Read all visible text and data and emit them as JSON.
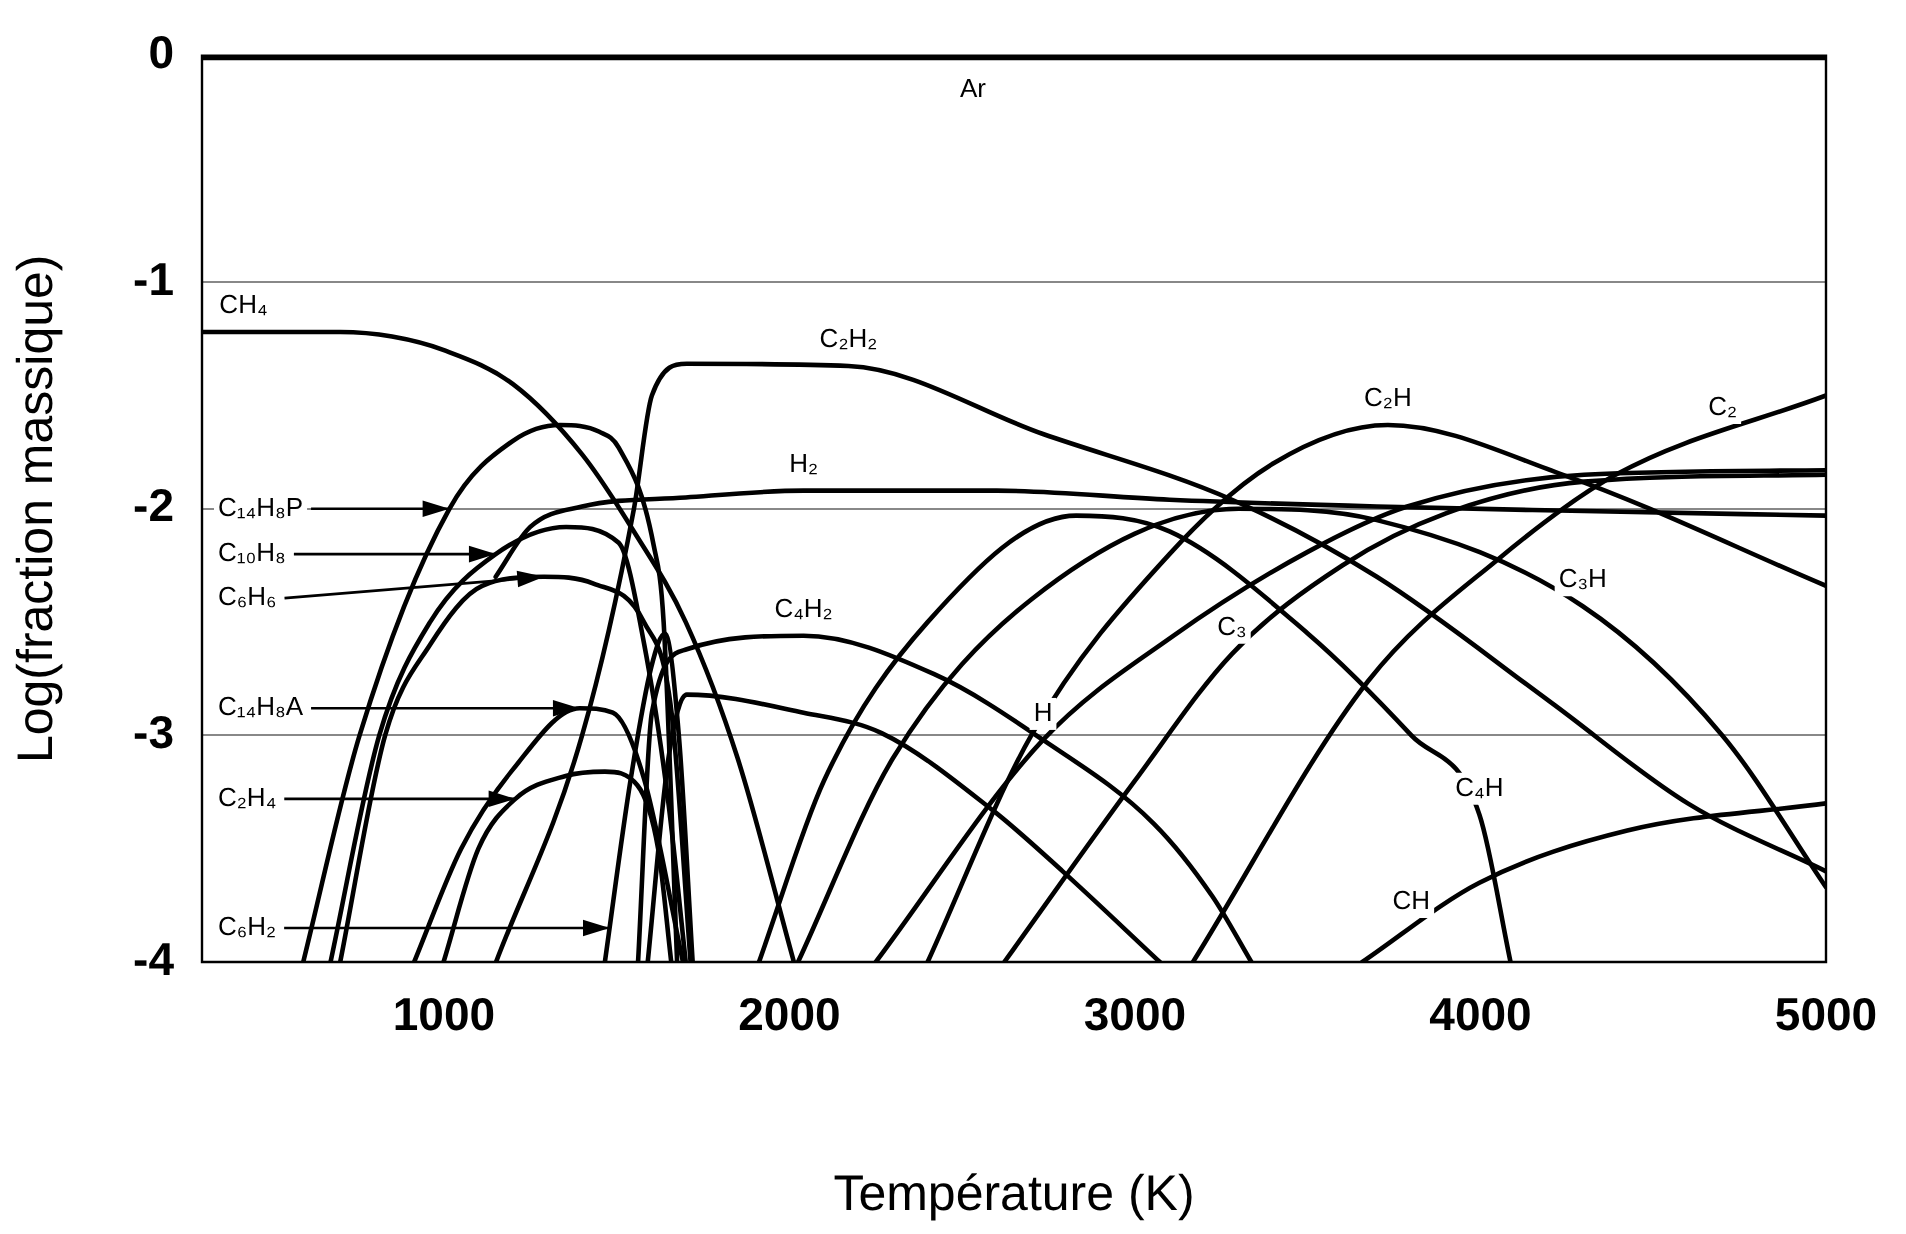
{
  "chart_data": {
    "type": "line",
    "xlabel": "Température (K)",
    "ylabel": "Log(fraction massique)",
    "xlim": [
      300,
      5000
    ],
    "xticks": [
      1000,
      2000,
      3000,
      4000,
      5000
    ],
    "ylim": [
      -4,
      0
    ],
    "yticks": [
      -4,
      -3,
      -2,
      -1,
      0
    ],
    "grid": "y",
    "legend": false,
    "marker": "none",
    "line_style": "solid",
    "series": [
      {
        "color": "#000000",
        "x": [
          300,
          5000
        ],
        "values": [
          -0.01,
          -0.01
        ]
      },
      {
        "color": "#000000",
        "x": [
          300,
          700,
          850,
          1000,
          1200,
          1400,
          1550,
          1700,
          1850,
          2013
        ],
        "values": [
          -1.22,
          -1.22,
          -1.24,
          -1.3,
          -1.45,
          -1.76,
          -2.1,
          -2.5,
          -3.1,
          -4
        ]
      },
      {
        "color": "#000000",
        "x": [
          593,
          756,
          1016,
          1200,
          1337,
          1450,
          1506,
          1607,
          1636,
          1675
        ],
        "values": [
          -4,
          -3,
          -2,
          -1.7,
          -1.63,
          -1.66,
          -1.73,
          -2.16,
          -2.5,
          -4
        ]
      },
      {
        "color": "#000000",
        "x": [
          672,
          813,
          960,
          1150,
          1354,
          1506,
          1580,
          1650,
          1700
        ],
        "values": [
          -4,
          -3,
          -2.5,
          -2.2,
          -2.08,
          -2.15,
          -2.6,
          -3.3,
          -4
        ]
      },
      {
        "color": "#000000",
        "x": [
          700,
          830,
          960,
          1111,
          1290,
          1433,
          1579,
          1659,
          1714
        ],
        "values": [
          -4,
          -3,
          -2.6,
          -2.34,
          -2.3,
          -2.33,
          -2.5,
          -2.9,
          -4
        ]
      },
      {
        "color": "#000000",
        "x": [
          914,
          1050,
          1200,
          1393,
          1489,
          1579,
          1692
        ],
        "values": [
          -4,
          -3.5,
          -3.15,
          -2.88,
          -2.9,
          -3.19,
          -4
        ]
      },
      {
        "color": "#000000",
        "x": [
          999,
          1100,
          1207,
          1350,
          1466,
          1560,
          1620,
          1658
        ],
        "values": [
          -4,
          -3.5,
          -3.28,
          -3.18,
          -3.16,
          -3.22,
          -3.5,
          -4
        ]
      },
      {
        "color": "#000000",
        "x": [
          1466,
          1540,
          1600,
          1640,
          1680,
          1720
        ],
        "values": [
          -4,
          -3.2,
          -2.7,
          -2.55,
          -3,
          -4
        ]
      },
      {
        "color": "#000000",
        "x": [
          1151,
          1400,
          1550,
          1602,
          1703,
          2171,
          2734,
          3281,
          3700,
          4200,
          4600,
          5000
        ],
        "values": [
          -4,
          -3,
          -2,
          -1.5,
          -1.36,
          -1.37,
          -1.67,
          -1.96,
          -2.3,
          -2.85,
          -3.3,
          -3.6
        ]
      },
      {
        "color": "#000000",
        "x": [
          1150,
          1250,
          1400,
          1700,
          2041,
          2600,
          3100,
          3700,
          4300,
          5000
        ],
        "values": [
          -2.3,
          -2.08,
          -1.99,
          -1.95,
          -1.92,
          -1.92,
          -1.96,
          -1.99,
          -2.01,
          -2.03
        ]
      },
      {
        "color": "#000000",
        "x": [
          1562,
          1602,
          1703,
          2041,
          2419,
          2734,
          3055,
          3224,
          3337
        ],
        "values": [
          -4,
          -2.9,
          -2.62,
          -2.56,
          -2.73,
          -3.02,
          -3.39,
          -3.71,
          -4
        ]
      },
      {
        "color": "#000000",
        "x": [
          1590,
          1650,
          1703,
          2041,
          2267,
          2588,
          2791,
          3072
        ],
        "values": [
          -4,
          -3.1,
          -2.82,
          -2.9,
          -2.99,
          -3.33,
          -3.6,
          -4
        ]
      },
      {
        "color": "#000000",
        "x": [
          1912,
          2100,
          2400,
          2830,
          3100,
          3500,
          3800,
          3997,
          4087
        ],
        "values": [
          -4,
          -3.2,
          -2.5,
          -2.03,
          -2.1,
          -2.55,
          -3,
          -3.35,
          -4
        ]
      },
      {
        "color": "#000000",
        "x": [
          2025,
          2300,
          2700,
          3300,
          3700,
          4296,
          4700,
          5000
        ],
        "values": [
          -4,
          -3.1,
          -2.4,
          -2,
          -2.05,
          -2.43,
          -3,
          -3.67
        ]
      },
      {
        "color": "#000000",
        "x": [
          2250,
          2734,
          3112,
          3500,
          3788,
          4300,
          5000
        ],
        "values": [
          -4,
          -3.02,
          -2.56,
          -2.19,
          -1.99,
          -1.85,
          -1.83
        ]
      },
      {
        "color": "#000000",
        "x": [
          2622,
          3000,
          3281,
          3600,
          3900,
          4300,
          5000
        ],
        "values": [
          -4,
          -3.2,
          -2.64,
          -2.25,
          -2.02,
          -1.88,
          -1.85
        ]
      },
      {
        "color": "#000000",
        "x": [
          2400,
          2700,
          3100,
          3400,
          3732,
          4239,
          5000
        ],
        "values": [
          -4,
          -3,
          -2.2,
          -1.8,
          -1.63,
          -1.85,
          -2.34
        ]
      },
      {
        "color": "#000000",
        "x": [
          3168,
          3675,
          4053,
          4391,
          5000
        ],
        "values": [
          -4,
          -2.76,
          -2.22,
          -1.85,
          -1.5
        ]
      },
      {
        "color": "#000000",
        "x": [
          3658,
          3997,
          4425,
          5000
        ],
        "values": [
          -4,
          -3.65,
          -3.42,
          -3.3
        ]
      }
    ],
    "annotations": [
      {
        "text": "Ar",
        "x": 2531,
        "y": -0.01
      },
      {
        "text": "CH₄",
        "x": 420,
        "y": -1.22
      },
      {
        "text": "C₆H₆",
        "x": 1290,
        "y": -2.3
      },
      {
        "text": "C₁₄H₈P",
        "x": 1016,
        "y": -2
      },
      {
        "text": "C₁₀H₈",
        "x": 1150,
        "y": -2.2
      },
      {
        "text": "C₁₄H₈A",
        "x": 1393,
        "y": -2.88
      },
      {
        "text": "C₂H₄",
        "x": 1207,
        "y": -3.28
      },
      {
        "text": "C₆H₂",
        "x": 1480,
        "y": -3.85
      },
      {
        "text": "C₂H₂",
        "x": 2171,
        "y": -1.37
      },
      {
        "text": "H₂",
        "x": 2041,
        "y": -1.92
      },
      {
        "text": "C₄H₂",
        "x": 2041,
        "y": -2.56
      },
      {
        "text": "H",
        "x": 2734,
        "y": -3.02
      },
      {
        "text": "C₃",
        "x": 3281,
        "y": -2.64
      },
      {
        "text": "C₂H",
        "x": 3732,
        "y": -1.63
      },
      {
        "text": "C₃H",
        "x": 4296,
        "y": -2.43
      },
      {
        "text": "C₄H",
        "x": 3997,
        "y": -3.35
      },
      {
        "text": "CH",
        "x": 3800,
        "y": -3.85
      },
      {
        "text": "C₂",
        "x": 4701,
        "y": -1.67
      }
    ]
  }
}
